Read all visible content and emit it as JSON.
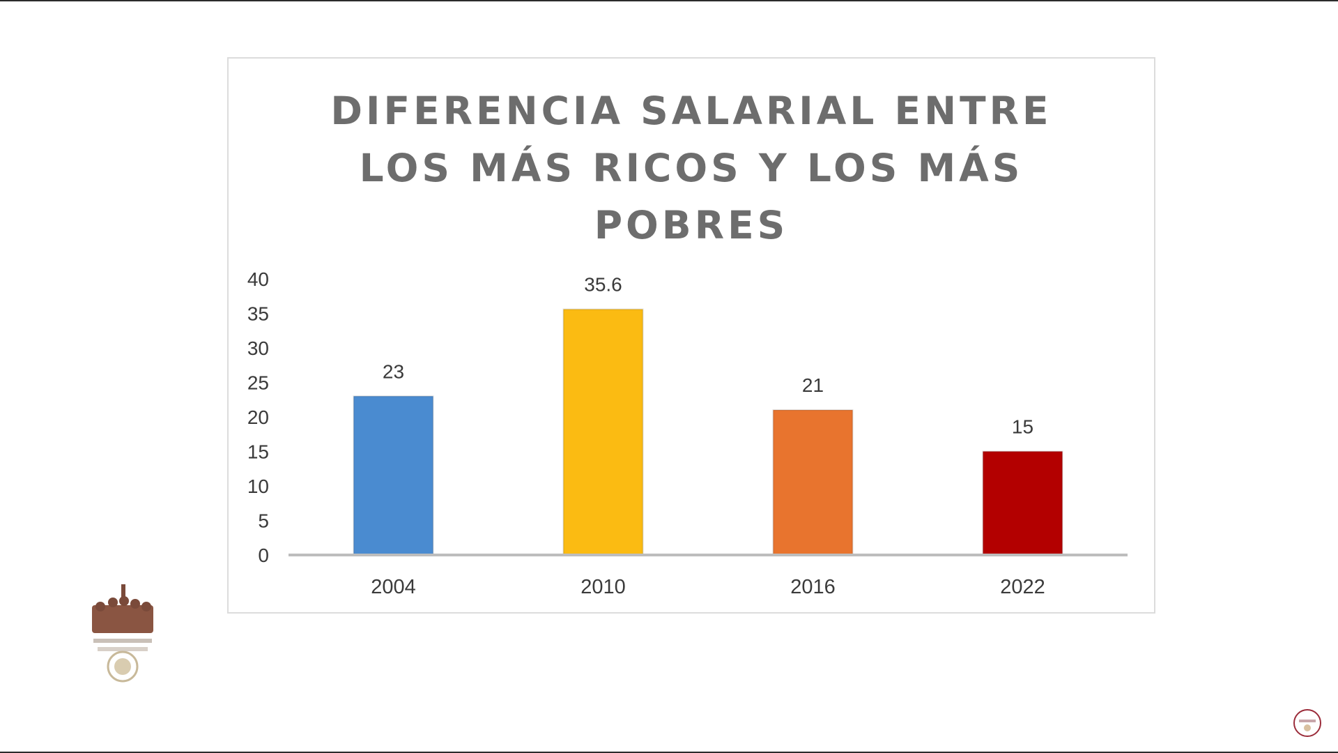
{
  "chart_data": {
    "type": "bar",
    "title_lines": [
      "DIFERENCIA SALARIAL ENTRE",
      "LOS MÁS RICOS Y LOS MÁS",
      "POBRES"
    ],
    "categories": [
      "2004",
      "2010",
      "2016",
      "2022"
    ],
    "values": [
      23,
      35.6,
      21,
      15
    ],
    "data_labels": [
      "23",
      "35.6",
      "21",
      "15"
    ],
    "colors": [
      "#4a8bd0",
      "#fbbb12",
      "#e8742e",
      "#b30000"
    ],
    "y_ticks": [
      "0",
      "5",
      "10",
      "15",
      "20",
      "25",
      "30",
      "35",
      "40"
    ],
    "ylim": [
      0,
      40
    ],
    "grid": false,
    "legend": "none"
  },
  "logos": {
    "left": "gobierno-de-mexico-logo",
    "right": "mexico-emblem"
  }
}
